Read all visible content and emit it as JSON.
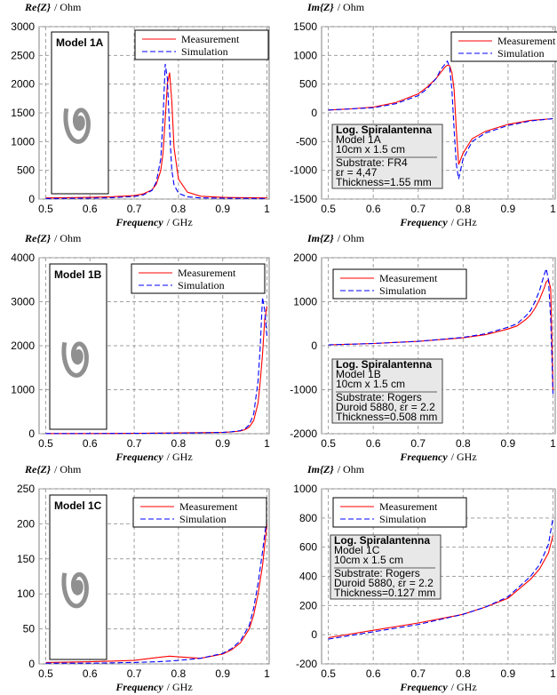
{
  "chart_data": [
    {
      "type": "line",
      "ylabel_symbol": "Re{Z}",
      "ylabel_unit": "/ Ohm",
      "xlabel_symbol": "Frequency",
      "xlabel_unit": "/ GHz",
      "model_label": "Model 1A",
      "x": [
        0.5,
        0.55,
        0.6,
        0.65,
        0.7,
        0.72,
        0.74,
        0.75,
        0.76,
        0.765,
        0.77,
        0.775,
        0.78,
        0.785,
        0.79,
        0.8,
        0.82,
        0.85,
        0.9,
        0.95,
        1.0
      ],
      "series": [
        {
          "name": "Measurement",
          "color": "#ff0000",
          "linestyle": "solid",
          "values": [
            20,
            25,
            30,
            40,
            60,
            90,
            160,
            260,
            500,
            800,
            1400,
            2000,
            2200,
            1700,
            900,
            350,
            120,
            50,
            30,
            25,
            20
          ]
        },
        {
          "name": "Simulation",
          "color": "#0000ff",
          "linestyle": "dashed",
          "values": [
            10,
            12,
            15,
            25,
            45,
            70,
            150,
            300,
            700,
            1400,
            2350,
            2100,
            1200,
            500,
            250,
            100,
            40,
            20,
            15,
            12,
            10
          ]
        }
      ],
      "xlim": [
        0.485,
        1.005
      ],
      "xticks": [
        0.5,
        0.6,
        0.7,
        0.8,
        0.9,
        1
      ],
      "ylim": [
        0,
        3000
      ],
      "yticks": [
        0,
        500,
        1000,
        1500,
        2000,
        2500,
        3000
      ],
      "grid": true
    },
    {
      "type": "line",
      "ylabel_symbol": "Im{Z}",
      "ylabel_unit": "/ Ohm",
      "xlabel_symbol": "Frequency",
      "xlabel_unit": "/ GHz",
      "info_box": [
        "Log. Spiralantenna",
        "Model 1A",
        "10cm x 1.5 cm",
        "Substrate: FR4",
        "εr = 4,47",
        "Thickness=1.55 mm"
      ],
      "x": [
        0.5,
        0.55,
        0.6,
        0.65,
        0.7,
        0.72,
        0.74,
        0.75,
        0.76,
        0.765,
        0.77,
        0.775,
        0.78,
        0.785,
        0.79,
        0.8,
        0.82,
        0.85,
        0.9,
        0.95,
        1.0
      ],
      "series": [
        {
          "name": "Measurement",
          "color": "#ff0000",
          "linestyle": "solid",
          "values": [
            50,
            70,
            100,
            180,
            330,
            450,
            600,
            700,
            800,
            830,
            820,
            700,
            400,
            -300,
            -900,
            -700,
            -450,
            -320,
            -200,
            -130,
            -100
          ]
        },
        {
          "name": "Simulation",
          "color": "#0000ff",
          "linestyle": "dashed",
          "values": [
            50,
            70,
            90,
            160,
            300,
            420,
            600,
            750,
            850,
            900,
            800,
            400,
            -300,
            -900,
            -1150,
            -800,
            -500,
            -350,
            -220,
            -140,
            -100
          ]
        }
      ],
      "xlim": [
        0.485,
        1.005
      ],
      "xticks": [
        0.5,
        0.6,
        0.7,
        0.8,
        0.9,
        1
      ],
      "ylim": [
        -1500,
        1500
      ],
      "yticks": [
        -1500,
        -1000,
        -500,
        0,
        500,
        1000,
        1500
      ],
      "grid": true
    },
    {
      "type": "line",
      "ylabel_symbol": "Re{Z}",
      "ylabel_unit": "/ Ohm",
      "xlabel_symbol": "Frequency",
      "xlabel_unit": "/ GHz",
      "model_label": "Model 1B",
      "x": [
        0.5,
        0.6,
        0.7,
        0.8,
        0.85,
        0.9,
        0.92,
        0.94,
        0.95,
        0.96,
        0.97,
        0.98,
        0.985,
        0.99,
        0.995,
        1.0
      ],
      "series": [
        {
          "name": "Measurement",
          "color": "#ff0000",
          "linestyle": "solid",
          "values": [
            5,
            5,
            10,
            20,
            25,
            30,
            40,
            60,
            90,
            150,
            300,
            700,
            1200,
            1800,
            2600,
            2900
          ]
        },
        {
          "name": "Simulation",
          "color": "#0000ff",
          "linestyle": "dashed",
          "values": [
            5,
            5,
            8,
            15,
            20,
            30,
            45,
            70,
            110,
            200,
            450,
            1200,
            2000,
            3100,
            2800,
            2200
          ]
        }
      ],
      "xlim": [
        0.485,
        1.005
      ],
      "xticks": [
        0.5,
        0.6,
        0.7,
        0.8,
        0.9,
        1
      ],
      "ylim": [
        0,
        4000
      ],
      "yticks": [
        0,
        1000,
        2000,
        3000,
        4000
      ],
      "grid": true
    },
    {
      "type": "line",
      "ylabel_symbol": "Im{Z}",
      "ylabel_unit": "/ Ohm",
      "xlabel_symbol": "Frequency",
      "xlabel_unit": "/ GHz",
      "info_box": [
        "Log. Spiralantenna",
        "Model 1B",
        "10cm x 1.5 cm",
        "Substrate: Rogers",
        "Duroid 5880, εr = 2.2",
        "Thickness=0.508 mm"
      ],
      "x": [
        0.5,
        0.6,
        0.7,
        0.8,
        0.85,
        0.9,
        0.92,
        0.94,
        0.95,
        0.96,
        0.97,
        0.98,
        0.985,
        0.99,
        0.995,
        1.0
      ],
      "series": [
        {
          "name": "Measurement",
          "color": "#ff0000",
          "linestyle": "solid",
          "values": [
            20,
            50,
            100,
            180,
            250,
            380,
            450,
            600,
            700,
            850,
            1050,
            1300,
            1450,
            1500,
            1300,
            -1000
          ]
        },
        {
          "name": "Simulation",
          "color": "#0000ff",
          "linestyle": "dashed",
          "values": [
            20,
            50,
            100,
            190,
            270,
            420,
            500,
            680,
            800,
            1000,
            1250,
            1600,
            1750,
            1500,
            600,
            -1100
          ]
        }
      ],
      "xlim": [
        0.485,
        1.005
      ],
      "xticks": [
        0.5,
        0.6,
        0.7,
        0.8,
        0.9,
        1
      ],
      "ylim": [
        -2000,
        2000
      ],
      "yticks": [
        -2000,
        -1000,
        0,
        1000,
        2000
      ],
      "grid": true
    },
    {
      "type": "line",
      "ylabel_symbol": "Re{Z}",
      "ylabel_unit": "/ Ohm",
      "xlabel_symbol": "Frequency",
      "xlabel_unit": "/ GHz",
      "model_label": "Model 1C",
      "x": [
        0.5,
        0.6,
        0.7,
        0.75,
        0.78,
        0.8,
        0.85,
        0.9,
        0.92,
        0.94,
        0.96,
        0.97,
        0.98,
        0.99,
        1.0
      ],
      "series": [
        {
          "name": "Measurement",
          "color": "#ff0000",
          "linestyle": "solid",
          "values": [
            2,
            3,
            5,
            9,
            11,
            10,
            8,
            14,
            20,
            30,
            50,
            70,
            100,
            140,
            200
          ]
        },
        {
          "name": "Simulation",
          "color": "#0000ff",
          "linestyle": "dashed",
          "values": [
            1,
            1,
            2,
            3,
            4,
            5,
            8,
            15,
            22,
            33,
            55,
            80,
            115,
            160,
            210
          ]
        }
      ],
      "xlim": [
        0.485,
        1.005
      ],
      "xticks": [
        0.5,
        0.6,
        0.7,
        0.8,
        0.9,
        1
      ],
      "ylim": [
        0,
        250
      ],
      "yticks": [
        0,
        50,
        100,
        150,
        200,
        250
      ],
      "grid": true
    },
    {
      "type": "line",
      "ylabel_symbol": "Im{Z}",
      "ylabel_unit": "/ Ohm",
      "xlabel_symbol": "Frequency",
      "xlabel_unit": "/ GHz",
      "info_box": [
        "Log. Spiralantenna",
        "Model 1C",
        "10cm x 1.5 cm",
        "Substrate: Rogers",
        "Duroid 5880, εr = 2.2",
        "Thickness=0.127 mm"
      ],
      "x": [
        0.5,
        0.6,
        0.7,
        0.8,
        0.85,
        0.9,
        0.95,
        0.97,
        0.99,
        1.0
      ],
      "series": [
        {
          "name": "Measurement",
          "color": "#ff0000",
          "linestyle": "solid",
          "values": [
            -20,
            30,
            80,
            140,
            190,
            250,
            380,
            450,
            560,
            680
          ]
        },
        {
          "name": "Simulation",
          "color": "#0000ff",
          "linestyle": "dashed",
          "values": [
            -30,
            20,
            70,
            140,
            190,
            260,
            400,
            480,
            620,
            800
          ]
        }
      ],
      "xlim": [
        0.485,
        1.005
      ],
      "xticks": [
        0.5,
        0.6,
        0.7,
        0.8,
        0.9,
        1
      ],
      "ylim": [
        -200,
        1000
      ],
      "yticks": [
        -200,
        0,
        200,
        400,
        600,
        800,
        1000
      ],
      "grid": true
    }
  ]
}
